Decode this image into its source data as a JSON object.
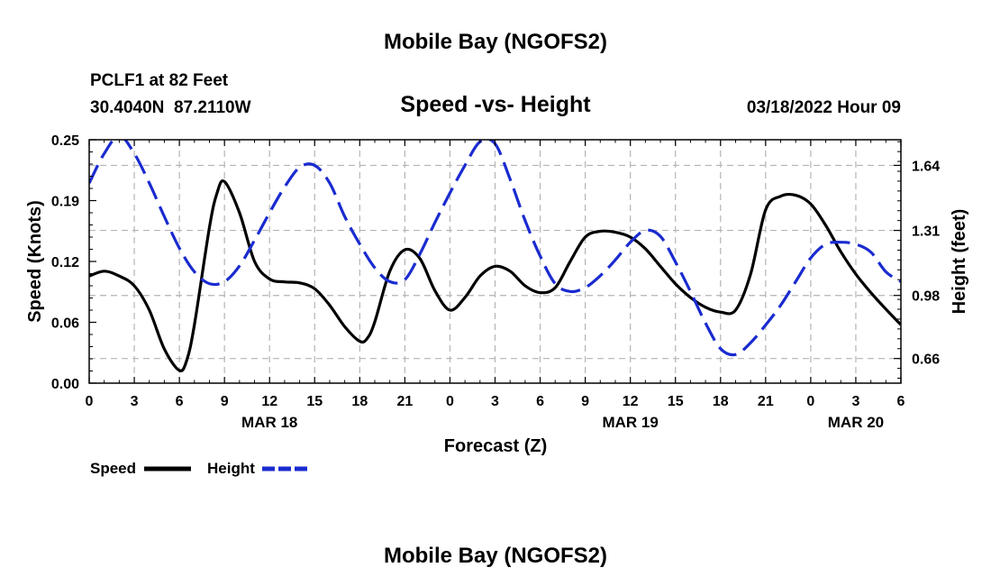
{
  "header": {
    "title": "Mobile Bay (NGOFS2)",
    "station": "PCLF1 at 82 Feet",
    "coords": "30.4040N  87.2110W",
    "subtitle": "Speed -vs- Height",
    "datetime": "03/18/2022 Hour 09"
  },
  "footer": {
    "title": "Mobile Bay (NGOFS2)"
  },
  "legend": {
    "speed_label": "Speed",
    "height_label": "Height"
  },
  "colors": {
    "speed": "#000000",
    "height": "#1a2bd0",
    "grid": "#b4b4b4"
  },
  "chart_data": {
    "type": "line",
    "title": "Speed -vs- Height",
    "xlabel": "Forecast (Z)",
    "ylabel_left": "Speed (Knots)",
    "ylabel_right": "Height (feet)",
    "x_range_hours": [
      0,
      54
    ],
    "x_tick_labels": [
      "0",
      "3",
      "6",
      "9",
      "12",
      "15",
      "18",
      "21",
      "0",
      "3",
      "6",
      "9",
      "12",
      "15",
      "18",
      "21",
      "0",
      "3",
      "6"
    ],
    "day_labels": [
      {
        "label": "MAR 18",
        "hour": 12
      },
      {
        "label": "MAR 19",
        "hour": 36
      },
      {
        "label": "MAR 20",
        "hour": 51
      }
    ],
    "ylim_left": [
      0,
      0.25
    ],
    "y_ticks_left": [
      {
        "value": 0,
        "label": "0.00"
      },
      {
        "value": 0.0625,
        "label": "0.06"
      },
      {
        "value": 0.125,
        "label": "0.12"
      },
      {
        "value": 0.1875,
        "label": "0.19"
      },
      {
        "value": 0.25,
        "label": "0.25"
      }
    ],
    "ylim_right": [
      0.535,
      1.77
    ],
    "y_ticks_right": [
      {
        "value": 0.66,
        "label": "0.66"
      },
      {
        "value": 0.98,
        "label": "0.98"
      },
      {
        "value": 1.31,
        "label": "1.31"
      },
      {
        "value": 1.64,
        "label": "1.64"
      }
    ],
    "series": [
      {
        "name": "Speed",
        "axis": "left",
        "style": "solid",
        "x": [
          0,
          1,
          2,
          3,
          4,
          5,
          6,
          6.5,
          7,
          8,
          8.5,
          9,
          10,
          11,
          12,
          13,
          14,
          15,
          16,
          17,
          18,
          18.5,
          19,
          20,
          21,
          22,
          23,
          24,
          25,
          26,
          27,
          28,
          29,
          30,
          31,
          32,
          33,
          34,
          35,
          36,
          37,
          38,
          39,
          40,
          41,
          42,
          43,
          44,
          45,
          46,
          47,
          48,
          49,
          50,
          51,
          52,
          53,
          54
        ],
        "values": [
          0.11,
          0.115,
          0.11,
          0.1,
          0.075,
          0.035,
          0.013,
          0.024,
          0.06,
          0.16,
          0.195,
          0.207,
          0.175,
          0.125,
          0.107,
          0.104,
          0.103,
          0.097,
          0.08,
          0.058,
          0.043,
          0.046,
          0.063,
          0.115,
          0.137,
          0.128,
          0.095,
          0.075,
          0.088,
          0.11,
          0.12,
          0.115,
          0.1,
          0.093,
          0.098,
          0.125,
          0.15,
          0.156,
          0.155,
          0.15,
          0.138,
          0.12,
          0.102,
          0.088,
          0.078,
          0.073,
          0.075,
          0.112,
          0.178,
          0.192,
          0.193,
          0.184,
          0.162,
          0.135,
          0.112,
          0.093,
          0.076,
          0.06
        ]
      },
      {
        "name": "Height",
        "axis": "right",
        "style": "dashed",
        "x": [
          0,
          1,
          2,
          3,
          4,
          5,
          6,
          7,
          8,
          9,
          10,
          11,
          12,
          13,
          14,
          15,
          16,
          17,
          18,
          19,
          20,
          21,
          22,
          23,
          24,
          25,
          26,
          27,
          28,
          29,
          30,
          31,
          32,
          33,
          34,
          35,
          36,
          37,
          38,
          39,
          40,
          41,
          42,
          43,
          44,
          45,
          46,
          47,
          48,
          49,
          50,
          51,
          52,
          53,
          54
        ],
        "values": [
          1.55,
          1.7,
          1.79,
          1.7,
          1.55,
          1.38,
          1.22,
          1.1,
          1.04,
          1.05,
          1.13,
          1.26,
          1.4,
          1.53,
          1.63,
          1.64,
          1.55,
          1.38,
          1.24,
          1.12,
          1.05,
          1.06,
          1.19,
          1.35,
          1.5,
          1.64,
          1.76,
          1.75,
          1.57,
          1.36,
          1.18,
          1.04,
          1.0,
          1.02,
          1.08,
          1.16,
          1.25,
          1.31,
          1.28,
          1.15,
          1.0,
          0.84,
          0.71,
          0.68,
          0.74,
          0.83,
          0.93,
          1.05,
          1.17,
          1.24,
          1.25,
          1.24,
          1.2,
          1.1,
          1.05
        ]
      }
    ]
  }
}
